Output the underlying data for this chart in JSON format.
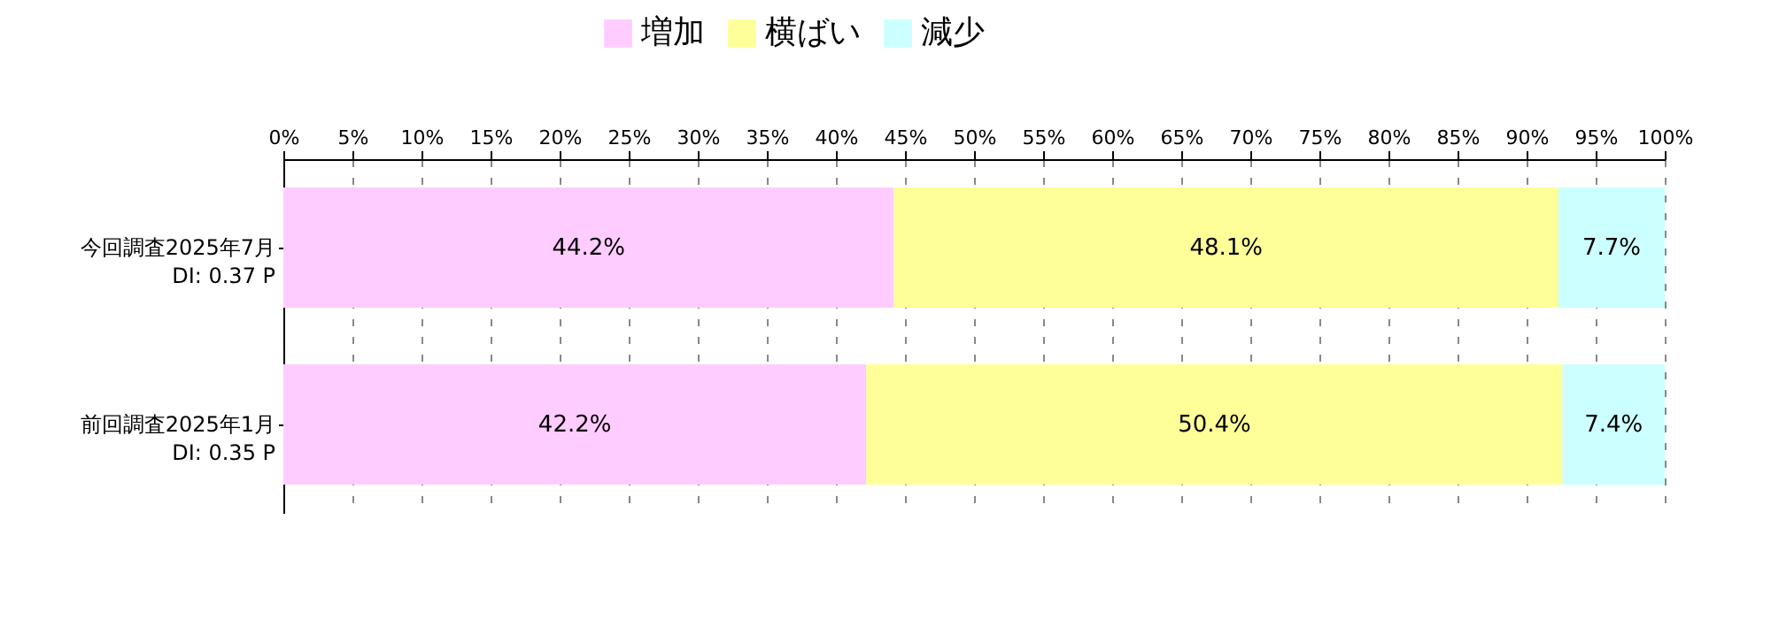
{
  "chart_data": {
    "type": "bar",
    "orientation": "horizontal",
    "stacked": true,
    "categories": [
      "今回調査2025年7月\nDI: 0.37 P",
      "前回調査2025年1月\nDI: 0.35 P"
    ],
    "series": [
      {
        "name": "増加",
        "color": "#ffccff",
        "values": [
          44.2,
          42.2
        ],
        "value_labels": [
          "44.2%",
          "42.2%"
        ]
      },
      {
        "name": "横ばい",
        "color": "#ffff99",
        "values": [
          48.1,
          50.4
        ],
        "value_labels": [
          "48.1%",
          "50.4%"
        ]
      },
      {
        "name": "減少",
        "color": "#ccffff",
        "values": [
          7.7,
          7.4
        ],
        "value_labels": [
          "7.7%",
          "7.4%"
        ]
      }
    ],
    "xlim": [
      0,
      100
    ],
    "xticks": [
      {
        "value": 0,
        "label": "0%"
      },
      {
        "value": 5,
        "label": "5%"
      },
      {
        "value": 10,
        "label": "10%"
      },
      {
        "value": 15,
        "label": "15%"
      },
      {
        "value": 20,
        "label": "20%"
      },
      {
        "value": 25,
        "label": "25%"
      },
      {
        "value": 30,
        "label": "30%"
      },
      {
        "value": 35,
        "label": "35%"
      },
      {
        "value": 40,
        "label": "40%"
      },
      {
        "value": 45,
        "label": "45%"
      },
      {
        "value": 50,
        "label": "50%"
      },
      {
        "value": 55,
        "label": "55%"
      },
      {
        "value": 60,
        "label": "60%"
      },
      {
        "value": 65,
        "label": "65%"
      },
      {
        "value": 70,
        "label": "70%"
      },
      {
        "value": 75,
        "label": "75%"
      },
      {
        "value": 80,
        "label": "80%"
      },
      {
        "value": 85,
        "label": "85%"
      },
      {
        "value": 90,
        "label": "90%"
      },
      {
        "value": 95,
        "label": "95%"
      },
      {
        "value": 100,
        "label": "100%"
      }
    ],
    "grid": "x",
    "legend": "top"
  }
}
